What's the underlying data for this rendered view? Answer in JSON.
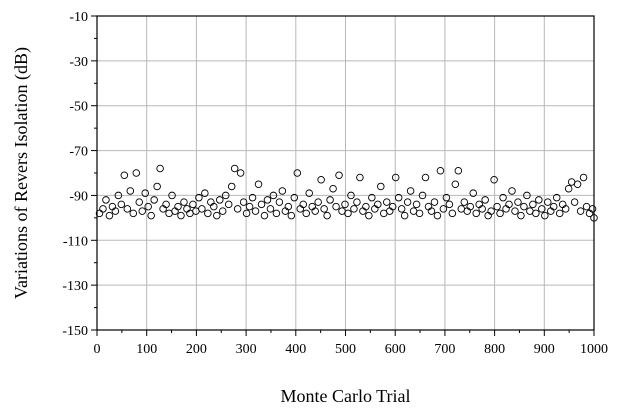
{
  "chart_data": {
    "type": "scatter",
    "title": "",
    "xlabel": "Monte Carlo Trial",
    "ylabel": "Variations of Revers Isolation (dB)",
    "xlim": [
      0,
      1000
    ],
    "ylim": [
      -150,
      -10
    ],
    "x_ticks": [
      0,
      100,
      200,
      300,
      400,
      500,
      600,
      700,
      800,
      900,
      1000
    ],
    "y_ticks": [
      -10,
      -30,
      -50,
      -70,
      -90,
      -110,
      -130,
      -150
    ],
    "grid": true,
    "marker": "open-circle",
    "colors": {
      "axis": "#000000",
      "grid": "#b8b8b8",
      "marker": "#000000"
    },
    "series": [
      {
        "points": [
          [
            5,
            -98
          ],
          [
            12,
            -96
          ],
          [
            18,
            -92
          ],
          [
            25,
            -99
          ],
          [
            31,
            -95
          ],
          [
            37,
            -97
          ],
          [
            43,
            -90
          ],
          [
            49,
            -94
          ],
          [
            55,
            -81
          ],
          [
            61,
            -96
          ],
          [
            67,
            -88
          ],
          [
            73,
            -98
          ],
          [
            79,
            -80
          ],
          [
            85,
            -93
          ],
          [
            91,
            -97
          ],
          [
            97,
            -89
          ],
          [
            103,
            -95
          ],
          [
            109,
            -99
          ],
          [
            115,
            -92
          ],
          [
            121,
            -86
          ],
          [
            127,
            -78
          ],
          [
            133,
            -96
          ],
          [
            139,
            -94
          ],
          [
            145,
            -98
          ],
          [
            151,
            -90
          ],
          [
            157,
            -97
          ],
          [
            163,
            -95
          ],
          [
            169,
            -99
          ],
          [
            175,
            -93
          ],
          [
            181,
            -96
          ],
          [
            187,
            -98
          ],
          [
            193,
            -94
          ],
          [
            199,
            -97
          ],
          [
            205,
            -91
          ],
          [
            211,
            -96
          ],
          [
            217,
            -89
          ],
          [
            223,
            -98
          ],
          [
            229,
            -93
          ],
          [
            235,
            -95
          ],
          [
            241,
            -99
          ],
          [
            247,
            -92
          ],
          [
            253,
            -97
          ],
          [
            259,
            -90
          ],
          [
            265,
            -94
          ],
          [
            271,
            -86
          ],
          [
            277,
            -78
          ],
          [
            283,
            -96
          ],
          [
            289,
            -80
          ],
          [
            295,
            -93
          ],
          [
            301,
            -98
          ],
          [
            307,
            -95
          ],
          [
            313,
            -91
          ],
          [
            319,
            -97
          ],
          [
            325,
            -85
          ],
          [
            331,
            -94
          ],
          [
            337,
            -99
          ],
          [
            343,
            -92
          ],
          [
            349,
            -96
          ],
          [
            355,
            -90
          ],
          [
            361,
            -98
          ],
          [
            367,
            -93
          ],
          [
            373,
            -88
          ],
          [
            379,
            -97
          ],
          [
            385,
            -95
          ],
          [
            391,
            -99
          ],
          [
            397,
            -91
          ],
          [
            403,
            -80
          ],
          [
            409,
            -96
          ],
          [
            415,
            -94
          ],
          [
            421,
            -98
          ],
          [
            427,
            -89
          ],
          [
            433,
            -95
          ],
          [
            439,
            -97
          ],
          [
            445,
            -93
          ],
          [
            451,
            -83
          ],
          [
            457,
            -96
          ],
          [
            463,
            -99
          ],
          [
            469,
            -92
          ],
          [
            475,
            -87
          ],
          [
            481,
            -95
          ],
          [
            487,
            -81
          ],
          [
            493,
            -97
          ],
          [
            499,
            -94
          ],
          [
            505,
            -98
          ],
          [
            511,
            -90
          ],
          [
            517,
            -96
          ],
          [
            523,
            -93
          ],
          [
            529,
            -82
          ],
          [
            535,
            -97
          ],
          [
            541,
            -95
          ],
          [
            547,
            -99
          ],
          [
            553,
            -91
          ],
          [
            559,
            -96
          ],
          [
            565,
            -94
          ],
          [
            571,
            -86
          ],
          [
            577,
            -98
          ],
          [
            583,
            -93
          ],
          [
            589,
            -97
          ],
          [
            595,
            -95
          ],
          [
            601,
            -82
          ],
          [
            607,
            -91
          ],
          [
            613,
            -96
          ],
          [
            619,
            -99
          ],
          [
            625,
            -93
          ],
          [
            631,
            -88
          ],
          [
            637,
            -97
          ],
          [
            643,
            -94
          ],
          [
            649,
            -98
          ],
          [
            655,
            -90
          ],
          [
            661,
            -82
          ],
          [
            667,
            -95
          ],
          [
            673,
            -97
          ],
          [
            679,
            -93
          ],
          [
            685,
            -99
          ],
          [
            691,
            -79
          ],
          [
            697,
            -96
          ],
          [
            703,
            -91
          ],
          [
            709,
            -94
          ],
          [
            715,
            -98
          ],
          [
            721,
            -85
          ],
          [
            727,
            -79
          ],
          [
            733,
            -96
          ],
          [
            739,
            -93
          ],
          [
            745,
            -97
          ],
          [
            751,
            -95
          ],
          [
            757,
            -89
          ],
          [
            763,
            -98
          ],
          [
            769,
            -94
          ],
          [
            775,
            -96
          ],
          [
            781,
            -92
          ],
          [
            787,
            -99
          ],
          [
            793,
            -97
          ],
          [
            799,
            -83
          ],
          [
            805,
            -95
          ],
          [
            811,
            -98
          ],
          [
            817,
            -91
          ],
          [
            823,
            -96
          ],
          [
            829,
            -94
          ],
          [
            835,
            -88
          ],
          [
            841,
            -97
          ],
          [
            847,
            -93
          ],
          [
            853,
            -99
          ],
          [
            859,
            -95
          ],
          [
            865,
            -90
          ],
          [
            871,
            -97
          ],
          [
            877,
            -94
          ],
          [
            883,
            -98
          ],
          [
            889,
            -92
          ],
          [
            895,
            -96
          ],
          [
            901,
            -99
          ],
          [
            907,
            -93
          ],
          [
            913,
            -97
          ],
          [
            919,
            -95
          ],
          [
            925,
            -91
          ],
          [
            931,
            -98
          ],
          [
            937,
            -94
          ],
          [
            943,
            -96
          ],
          [
            949,
            -87
          ],
          [
            955,
            -84
          ],
          [
            961,
            -93
          ],
          [
            967,
            -85
          ],
          [
            973,
            -97
          ],
          [
            979,
            -82
          ],
          [
            985,
            -95
          ],
          [
            991,
            -98
          ],
          [
            997,
            -96
          ],
          [
            1000,
            -100
          ]
        ]
      }
    ]
  }
}
